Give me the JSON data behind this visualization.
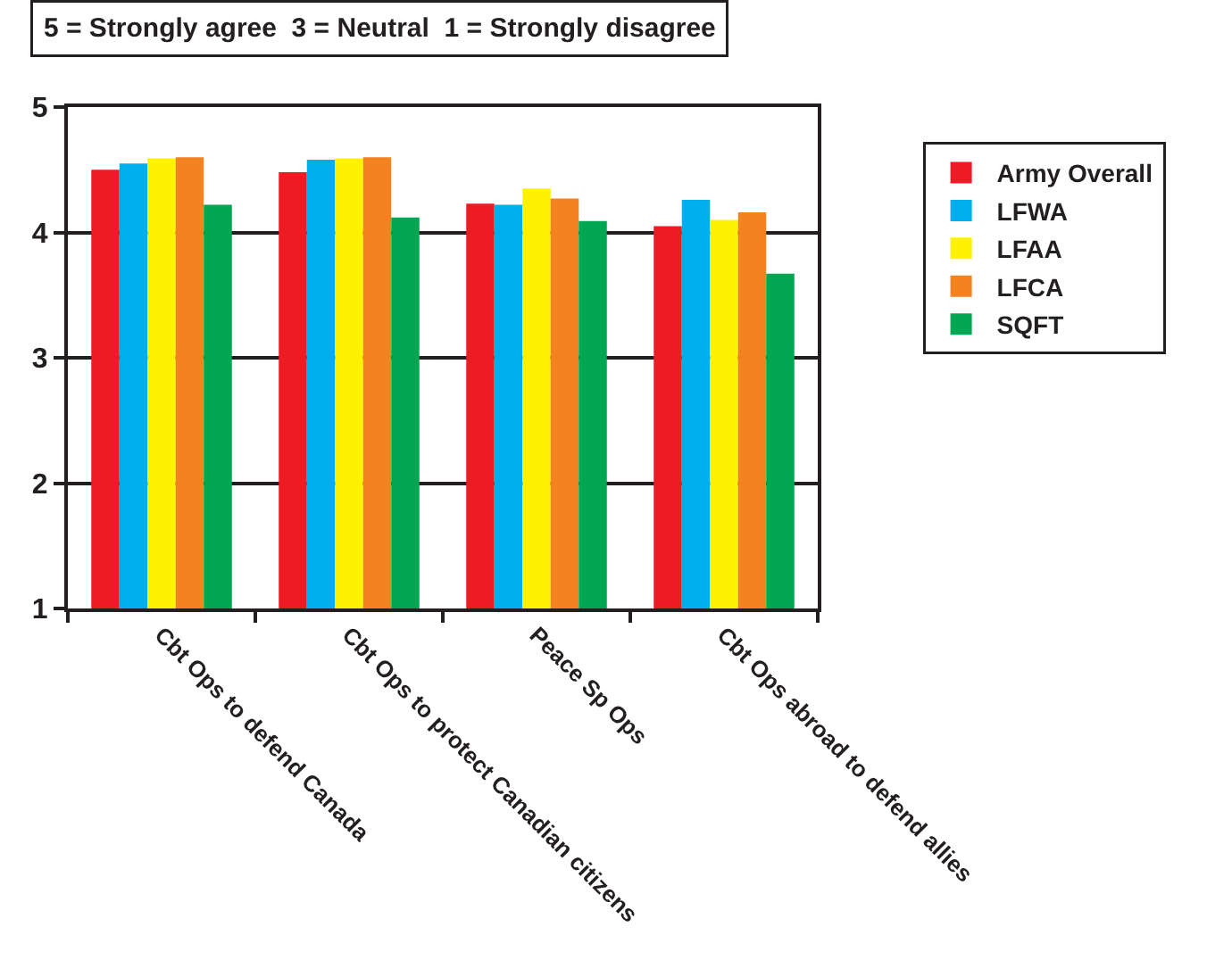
{
  "chart_data": {
    "type": "bar",
    "title": "5 = Strongly agree  3 = Neutral  1 = Strongly disagree",
    "categories": [
      "Cbt Ops to defend Canada",
      "Cbt Ops to protect Canadian citizens",
      "Peace Sp Ops",
      "Cbt Ops abroad to defend allies"
    ],
    "series": [
      {
        "name": "Army Overall",
        "color": "#ed1c24",
        "values": [
          4.5,
          4.48,
          4.23,
          4.05
        ]
      },
      {
        "name": "LFWA",
        "color": "#00aeef",
        "values": [
          4.55,
          4.58,
          4.22,
          4.26
        ]
      },
      {
        "name": "LFAA",
        "color": "#fff200",
        "values": [
          4.59,
          4.59,
          4.35,
          4.1
        ]
      },
      {
        "name": "LFCA",
        "color": "#f58220",
        "values": [
          4.6,
          4.6,
          4.27,
          4.16
        ]
      },
      {
        "name": "SQFT",
        "color": "#00a651",
        "values": [
          4.22,
          4.12,
          4.09,
          3.67
        ]
      }
    ],
    "ylim": [
      1,
      5
    ],
    "yticks": [
      1,
      2,
      3,
      4,
      5
    ],
    "grid": "y",
    "legend": "right"
  }
}
